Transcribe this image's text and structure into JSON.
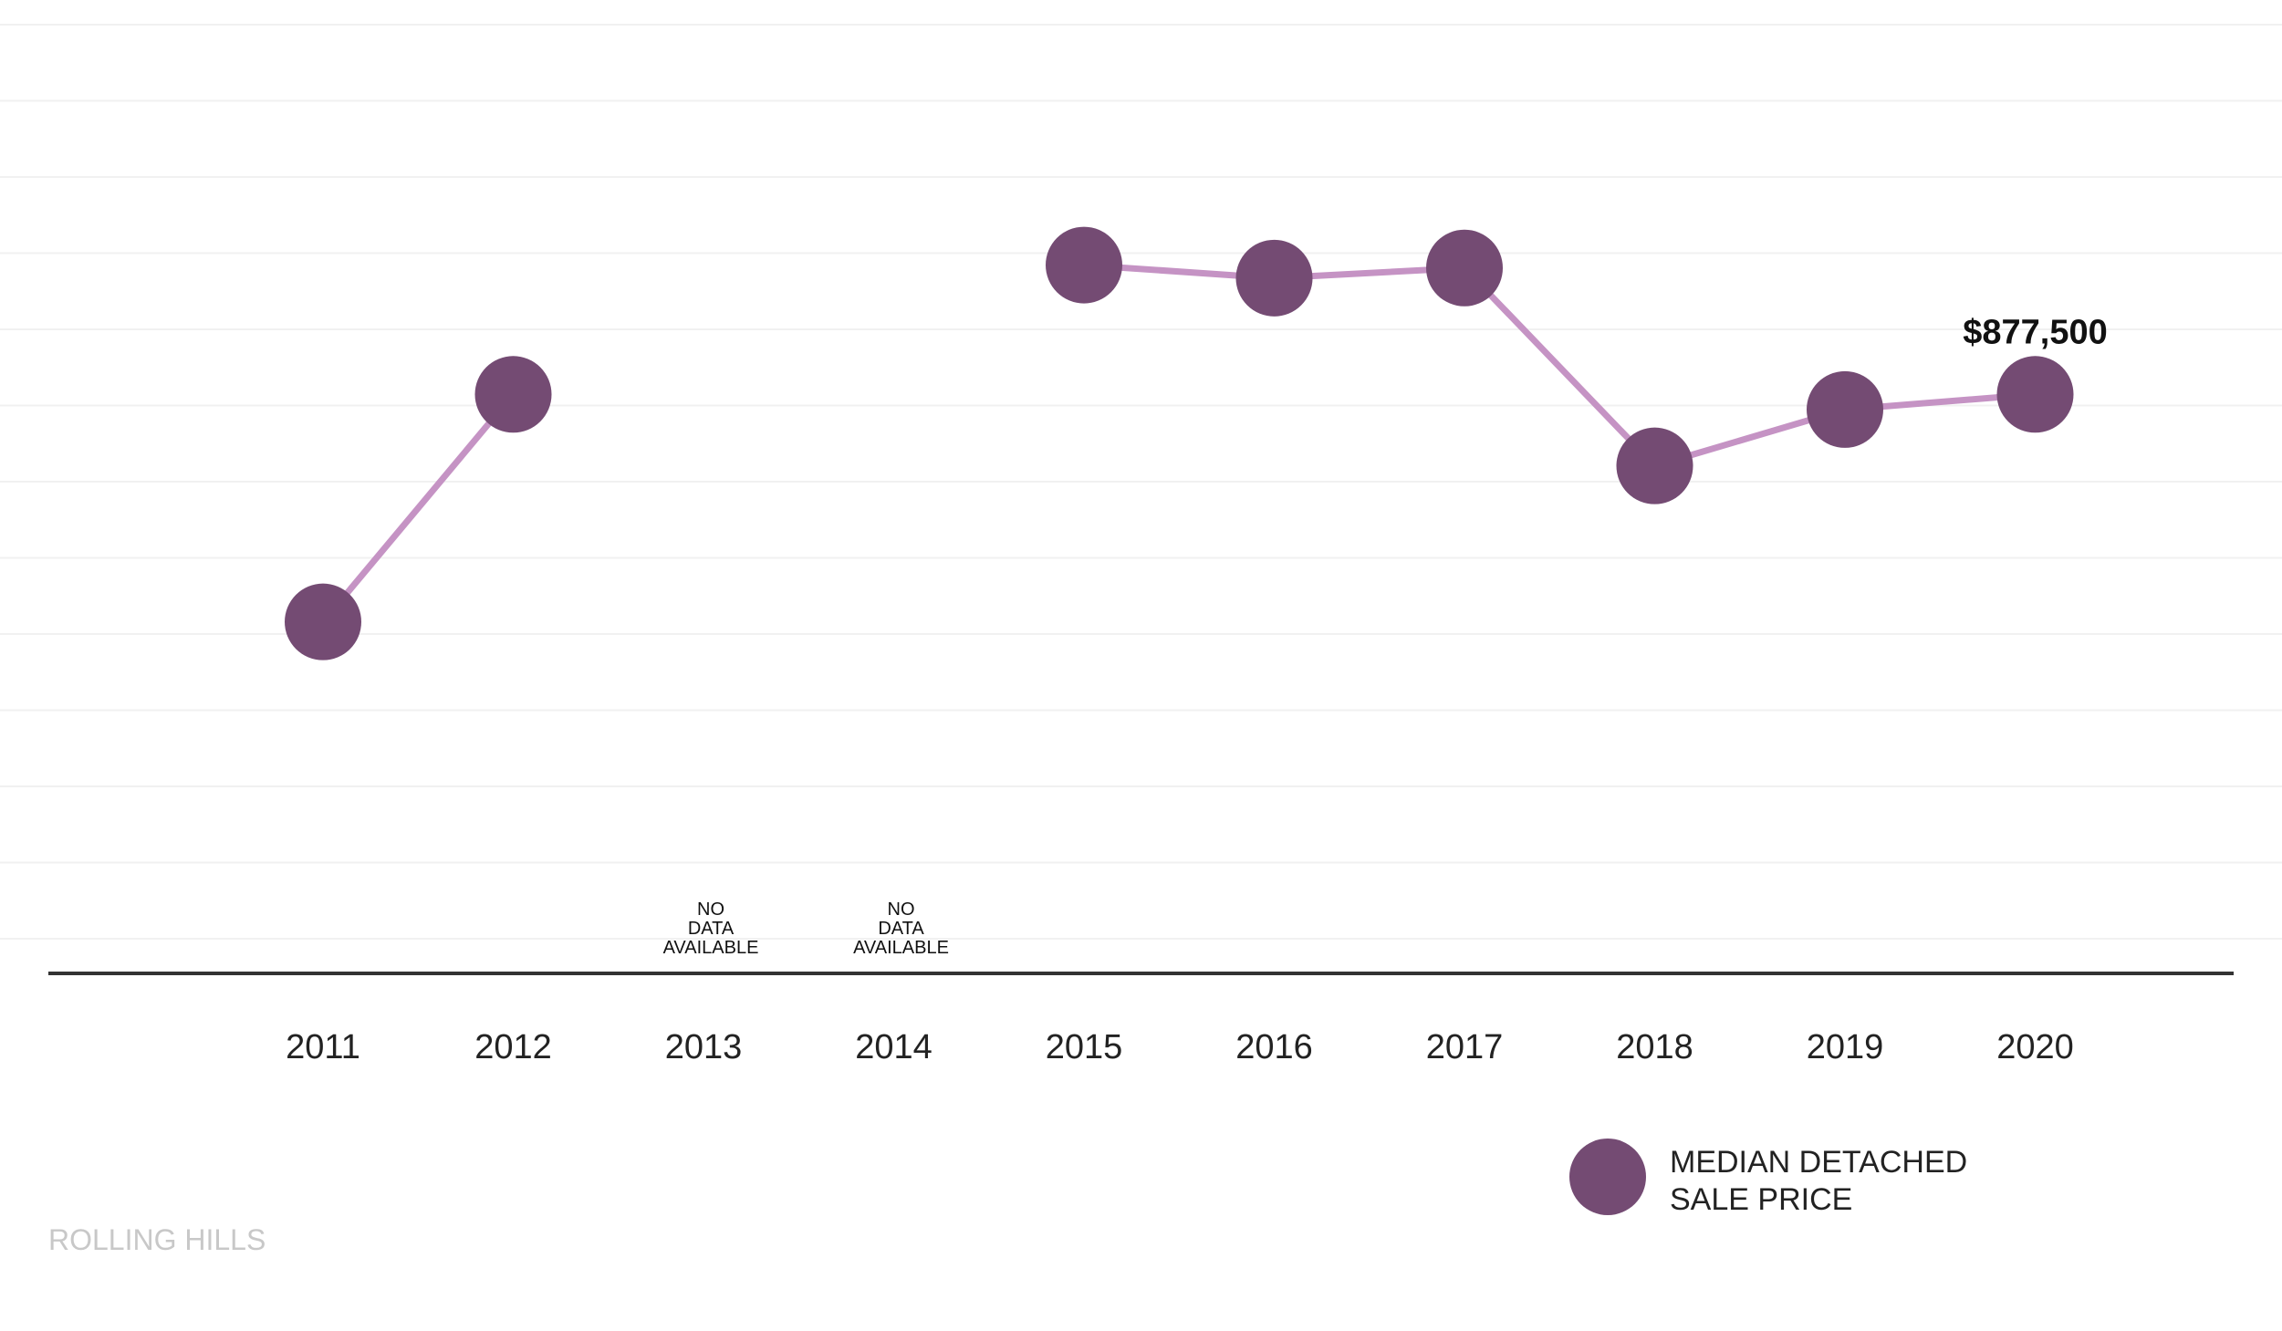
{
  "chart_data": {
    "type": "line",
    "categories": [
      "2011",
      "2012",
      "2013",
      "2014",
      "2015",
      "2016",
      "2017",
      "2018",
      "2019",
      "2020"
    ],
    "series": [
      {
        "name": "MEDIAN DETACHED SALE PRICE",
        "values": [
          720000,
          877500,
          null,
          null,
          967000,
          958000,
          965000,
          828000,
          867000,
          877500
        ],
        "color": "#744b73",
        "line_color": "#c593c4"
      }
    ],
    "missing_label": [
      "NO",
      "DATA",
      "AVAILABLE"
    ],
    "data_labels": [
      {
        "category": "2020",
        "text": "$877,500"
      }
    ],
    "legend": {
      "position": "bottom-right",
      "lines": [
        "MEDIAN DETACHED",
        "SALE PRICE"
      ]
    },
    "footer": "ROLLING HILLS",
    "ylim": [
      500000,
      1100000
    ],
    "grid": true,
    "colors": {
      "marker": "#744b73",
      "line": "#c593c4",
      "grid": "#f1f1f1",
      "axis": "#333333",
      "footer": "#c8c8c8"
    }
  }
}
